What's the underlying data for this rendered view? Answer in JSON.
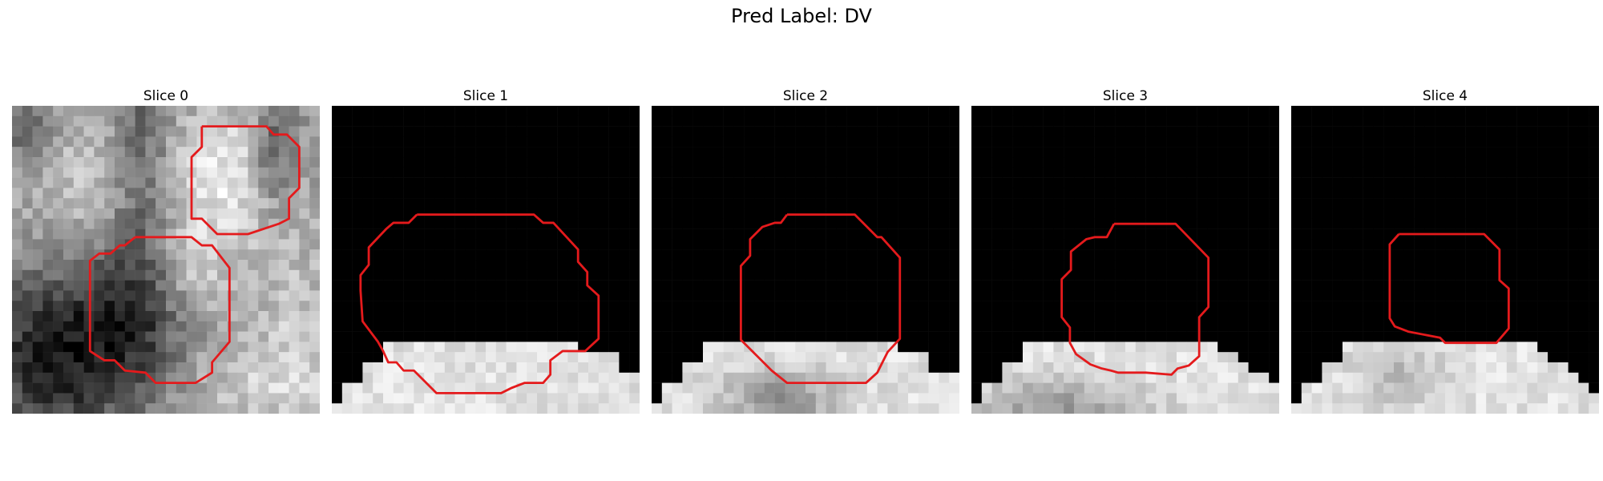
{
  "figure": {
    "title": "Pred Label: DV"
  },
  "panels": [
    {
      "title": "Slice 0",
      "image": "grayscale-mri-slice",
      "contour_color": "#e41a1c"
    },
    {
      "title": "Slice 1",
      "image": "grayscale-mri-slice",
      "contour_color": "#e41a1c"
    },
    {
      "title": "Slice 2",
      "image": "grayscale-mri-slice",
      "contour_color": "#e41a1c"
    },
    {
      "title": "Slice 3",
      "image": "grayscale-mri-slice",
      "contour_color": "#e41a1c"
    },
    {
      "title": "Slice 4",
      "image": "grayscale-mri-slice",
      "contour_color": "#e41a1c"
    }
  ]
}
